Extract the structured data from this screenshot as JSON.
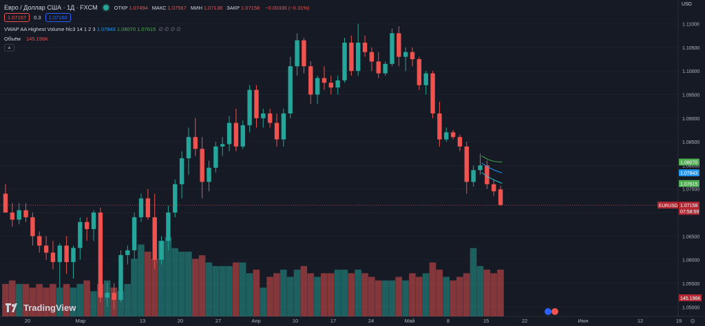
{
  "header": {
    "symbol_title": "Евро / Доллар США · 1Д · FXCM",
    "ohlc": [
      {
        "label": "ОТКР",
        "value": "1.07494"
      },
      {
        "label": "МАКС",
        "value": "1.07567"
      },
      {
        "label": "МИН",
        "value": "1.07138"
      },
      {
        "label": "ЗАКР",
        "value": "1.07158"
      }
    ],
    "change": "−0.00336 (−0.31%)",
    "sell_price": "1.07157",
    "spread": "0.3",
    "buy_price": "1.07160"
  },
  "indicator": {
    "name": "VWAP AA Highest Volume hlc3 14 1 2 3",
    "v1": "1.07843",
    "v2": "1.08070",
    "v3": "1.07615",
    "rest": "∅ ∅ ∅ ∅"
  },
  "volume": {
    "label": "Объём",
    "value": "145.196K"
  },
  "currency": "USD",
  "logo_text": "TradingView",
  "colors": {
    "bg": "#161a25",
    "up": "#26a69a",
    "down": "#ef5350",
    "vwap_hi": "#4caf50",
    "vwap_mid": "#2196f3",
    "vwap_lo": "#26c6da"
  },
  "chart_data": {
    "type": "candlestick",
    "price_ticks": [
      "1.11000",
      "1.10500",
      "1.10000",
      "1.09500",
      "1.09000",
      "1.08500",
      "1.08000",
      "1.07500",
      "1.07000",
      "1.06500",
      "1.06000",
      "1.05500",
      "1.05000"
    ],
    "ylim": [
      1.048,
      1.113
    ],
    "x_ticks": [
      "20",
      "Мар",
      "13",
      "20",
      "27",
      "Апр",
      "10",
      "17",
      "24",
      "Май",
      "8",
      "15",
      "22",
      "Июн",
      "12",
      "19"
    ],
    "candles": [
      {
        "o": 1.074,
        "h": 1.076,
        "l": 1.07,
        "c": 1.07
      },
      {
        "o": 1.07,
        "h": 1.072,
        "l": 1.067,
        "c": 1.0685
      },
      {
        "o": 1.0685,
        "h": 1.072,
        "l": 1.0675,
        "c": 1.0705
      },
      {
        "o": 1.0705,
        "h": 1.072,
        "l": 1.068,
        "c": 1.069
      },
      {
        "o": 1.069,
        "h": 1.07,
        "l": 1.063,
        "c": 1.065
      },
      {
        "o": 1.065,
        "h": 1.066,
        "l": 1.0615,
        "c": 1.063
      },
      {
        "o": 1.063,
        "h": 1.065,
        "l": 1.06,
        "c": 1.0615
      },
      {
        "o": 1.0615,
        "h": 1.064,
        "l": 1.058,
        "c": 1.0595
      },
      {
        "o": 1.0595,
        "h": 1.0635,
        "l": 1.054,
        "c": 1.063
      },
      {
        "o": 1.063,
        "h": 1.065,
        "l": 1.057,
        "c": 1.0595
      },
      {
        "o": 1.0595,
        "h": 1.063,
        "l": 1.056,
        "c": 1.0625
      },
      {
        "o": 1.0625,
        "h": 1.069,
        "l": 1.06,
        "c": 1.068
      },
      {
        "o": 1.068,
        "h": 1.069,
        "l": 1.064,
        "c": 1.0665
      },
      {
        "o": 1.0665,
        "h": 1.0705,
        "l": 1.064,
        "c": 1.07
      },
      {
        "o": 1.07,
        "h": 1.071,
        "l": 1.051,
        "c": 1.052
      },
      {
        "o": 1.052,
        "h": 1.055,
        "l": 1.05,
        "c": 1.053
      },
      {
        "o": 1.053,
        "h": 1.055,
        "l": 1.0495,
        "c": 1.0515
      },
      {
        "o": 1.0515,
        "h": 1.062,
        "l": 1.051,
        "c": 1.061
      },
      {
        "o": 1.061,
        "h": 1.063,
        "l": 1.059,
        "c": 1.062
      },
      {
        "o": 1.062,
        "h": 1.07,
        "l": 1.06,
        "c": 1.069
      },
      {
        "o": 1.069,
        "h": 1.074,
        "l": 1.068,
        "c": 1.073
      },
      {
        "o": 1.073,
        "h": 1.075,
        "l": 1.0685,
        "c": 1.069
      },
      {
        "o": 1.069,
        "h": 1.074,
        "l": 1.058,
        "c": 1.06
      },
      {
        "o": 1.06,
        "h": 1.065,
        "l": 1.059,
        "c": 1.064
      },
      {
        "o": 1.064,
        "h": 1.0715,
        "l": 1.062,
        "c": 1.07
      },
      {
        "o": 1.07,
        "h": 1.077,
        "l": 1.069,
        "c": 1.076
      },
      {
        "o": 1.076,
        "h": 1.083,
        "l": 1.073,
        "c": 1.0815
      },
      {
        "o": 1.0815,
        "h": 1.088,
        "l": 1.078,
        "c": 1.086
      },
      {
        "o": 1.086,
        "h": 1.09,
        "l": 1.082,
        "c": 1.0835
      },
      {
        "o": 1.0835,
        "h": 1.086,
        "l": 1.073,
        "c": 1.0765
      },
      {
        "o": 1.0765,
        "h": 1.081,
        "l": 1.0745,
        "c": 1.0795
      },
      {
        "o": 1.0795,
        "h": 1.085,
        "l": 1.0785,
        "c": 1.084
      },
      {
        "o": 1.084,
        "h": 1.086,
        "l": 1.082,
        "c": 1.0845
      },
      {
        "o": 1.0845,
        "h": 1.0905,
        "l": 1.083,
        "c": 1.089
      },
      {
        "o": 1.089,
        "h": 1.092,
        "l": 1.083,
        "c": 1.084
      },
      {
        "o": 1.084,
        "h": 1.0895,
        "l": 1.0835,
        "c": 1.0885
      },
      {
        "o": 1.0885,
        "h": 1.097,
        "l": 1.087,
        "c": 1.096
      },
      {
        "o": 1.096,
        "h": 1.097,
        "l": 1.088,
        "c": 1.09
      },
      {
        "o": 1.09,
        "h": 1.092,
        "l": 1.088,
        "c": 1.091
      },
      {
        "o": 1.091,
        "h": 1.092,
        "l": 1.088,
        "c": 1.089
      },
      {
        "o": 1.089,
        "h": 1.091,
        "l": 1.084,
        "c": 1.0855
      },
      {
        "o": 1.0855,
        "h": 1.092,
        "l": 1.084,
        "c": 1.091
      },
      {
        "o": 1.091,
        "h": 1.103,
        "l": 1.09,
        "c": 1.101
      },
      {
        "o": 1.101,
        "h": 1.108,
        "l": 1.099,
        "c": 1.1065
      },
      {
        "o": 1.1065,
        "h": 1.107,
        "l": 1.0995,
        "c": 1.101
      },
      {
        "o": 1.101,
        "h": 1.102,
        "l": 1.093,
        "c": 1.095
      },
      {
        "o": 1.095,
        "h": 1.099,
        "l": 1.093,
        "c": 1.0985
      },
      {
        "o": 1.0985,
        "h": 1.101,
        "l": 1.096,
        "c": 1.0975
      },
      {
        "o": 1.0975,
        "h": 1.099,
        "l": 1.095,
        "c": 1.0965
      },
      {
        "o": 1.0965,
        "h": 1.099,
        "l": 1.095,
        "c": 1.098
      },
      {
        "o": 1.098,
        "h": 1.107,
        "l": 1.0975,
        "c": 1.106
      },
      {
        "o": 1.106,
        "h": 1.1075,
        "l": 1.099,
        "c": 1.1
      },
      {
        "o": 1.1,
        "h": 1.11,
        "l": 1.099,
        "c": 1.106
      },
      {
        "o": 1.106,
        "h": 1.1075,
        "l": 1.103,
        "c": 1.104
      },
      {
        "o": 1.104,
        "h": 1.105,
        "l": 1.1,
        "c": 1.102
      },
      {
        "o": 1.102,
        "h": 1.104,
        "l": 1.0985,
        "c": 1.0995
      },
      {
        "o": 1.0995,
        "h": 1.102,
        "l": 1.099,
        "c": 1.1015
      },
      {
        "o": 1.1015,
        "h": 1.109,
        "l": 1.101,
        "c": 1.108
      },
      {
        "o": 1.108,
        "h": 1.1095,
        "l": 1.101,
        "c": 1.103
      },
      {
        "o": 1.103,
        "h": 1.105,
        "l": 1.1,
        "c": 1.104
      },
      {
        "o": 1.104,
        "h": 1.105,
        "l": 1.101,
        "c": 1.1025
      },
      {
        "o": 1.1025,
        "h": 1.103,
        "l": 1.096,
        "c": 1.097
      },
      {
        "o": 1.097,
        "h": 1.1,
        "l": 1.095,
        "c": 1.0995
      },
      {
        "o": 1.0995,
        "h": 1.1,
        "l": 1.09,
        "c": 1.091
      },
      {
        "o": 1.091,
        "h": 1.0935,
        "l": 1.084,
        "c": 1.0855
      },
      {
        "o": 1.0855,
        "h": 1.088,
        "l": 1.085,
        "c": 1.087
      },
      {
        "o": 1.087,
        "h": 1.0875,
        "l": 1.0855,
        "c": 1.086
      },
      {
        "o": 1.086,
        "h": 1.0865,
        "l": 1.083,
        "c": 1.084
      },
      {
        "o": 1.084,
        "h": 1.085,
        "l": 1.074,
        "c": 1.0765
      },
      {
        "o": 1.0765,
        "h": 1.08,
        "l": 1.0755,
        "c": 1.079
      },
      {
        "o": 1.079,
        "h": 1.0825,
        "l": 1.078,
        "c": 1.08
      },
      {
        "o": 1.08,
        "h": 1.081,
        "l": 1.075,
        "c": 1.076
      },
      {
        "o": 1.076,
        "h": 1.077,
        "l": 1.0735,
        "c": 1.0745
      },
      {
        "o": 1.0749,
        "h": 1.0757,
        "l": 1.0714,
        "c": 1.0716
      }
    ],
    "volumes": [
      9,
      10,
      9,
      9,
      8,
      9,
      8,
      9,
      8,
      9,
      8,
      9,
      10,
      7,
      9,
      10,
      8,
      7,
      9,
      16,
      20,
      18,
      16,
      21,
      22,
      19,
      18,
      18,
      16,
      17,
      15,
      14,
      14,
      14,
      15,
      15,
      12,
      13,
      8,
      11,
      12,
      13,
      11,
      13,
      14,
      12,
      11,
      12,
      12,
      13,
      13,
      12,
      13,
      12,
      11,
      10,
      10,
      10,
      11,
      10,
      12,
      11,
      12,
      15,
      13,
      11,
      10,
      11,
      12,
      19,
      14,
      13,
      12,
      13
    ],
    "vwap": [
      {
        "name": "hi",
        "values": [
          1.082,
          1.0812,
          1.0808,
          1.0807
        ]
      },
      {
        "name": "mid",
        "values": [
          1.0805,
          1.0796,
          1.0789,
          1.0784
        ]
      },
      {
        "name": "lo",
        "values": [
          1.0785,
          1.0775,
          1.0768,
          1.0762
        ]
      }
    ],
    "price_labels": [
      {
        "name": "EURUSD",
        "value": "1.07158",
        "countdown": "07:58:59"
      },
      {
        "name": "vwap_hi",
        "value": "1.08070"
      },
      {
        "name": "vwap_mid",
        "value": "1.07843"
      },
      {
        "name": "vwap_lo",
        "value": "1.07615"
      }
    ],
    "volume_tag": "145.196K"
  }
}
